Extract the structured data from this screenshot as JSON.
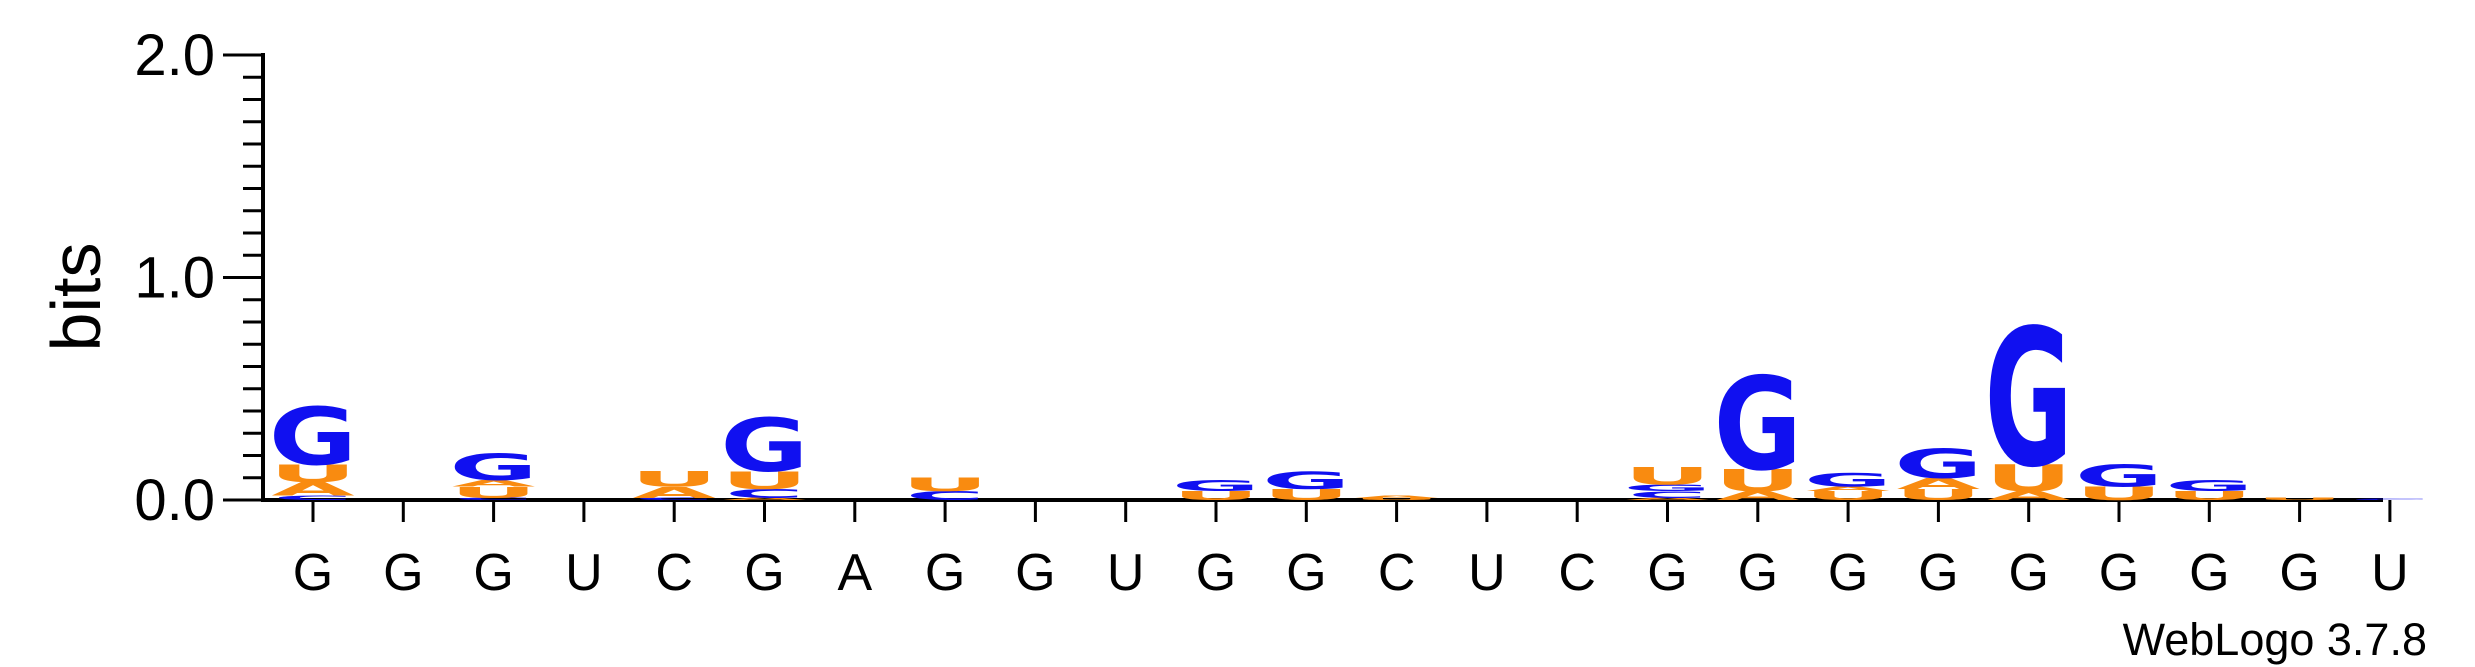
{
  "chart_data": {
    "type": "sequence-logo",
    "ylabel": "bits",
    "ylim": [
      0,
      2.0
    ],
    "yticks": [
      "0.0",
      "1.0",
      "2.0"
    ],
    "credit": "WebLogo 3.7.8",
    "colors": {
      "G": "#1010f0",
      "U": "#f98b10",
      "A": "#f98b10",
      "C": "#1010f0"
    },
    "positions": [
      {
        "label": "G",
        "stack": [
          [
            "C",
            0.02
          ],
          [
            "A",
            0.06
          ],
          [
            "U",
            0.08
          ],
          [
            "G",
            0.26
          ]
        ]
      },
      {
        "label": "G",
        "stack": []
      },
      {
        "label": "G",
        "stack": [
          [
            "C",
            0.01
          ],
          [
            "U",
            0.05
          ],
          [
            "A",
            0.03
          ],
          [
            "G",
            0.12
          ]
        ]
      },
      {
        "label": "U",
        "stack": []
      },
      {
        "label": "C",
        "stack": [
          [
            "C",
            0.01
          ],
          [
            "A",
            0.05
          ],
          [
            "U",
            0.07
          ]
        ]
      },
      {
        "label": "G",
        "stack": [
          [
            "A",
            0.01
          ],
          [
            "C",
            0.04
          ],
          [
            "U",
            0.08
          ],
          [
            "G",
            0.24
          ]
        ]
      },
      {
        "label": "A",
        "stack": []
      },
      {
        "label": "G",
        "stack": [
          [
            "C",
            0.04
          ],
          [
            "U",
            0.06
          ]
        ]
      },
      {
        "label": "G",
        "stack": []
      },
      {
        "label": "U",
        "stack": []
      },
      {
        "label": "G",
        "stack": [
          [
            "U",
            0.04
          ],
          [
            "G",
            0.05
          ]
        ]
      },
      {
        "label": "G",
        "stack": [
          [
            "U",
            0.05
          ],
          [
            "G",
            0.08
          ]
        ]
      },
      {
        "label": "C",
        "stack": [
          [
            "U",
            0.01
          ],
          [
            "A",
            0.01
          ]
        ]
      },
      {
        "label": "U",
        "stack": []
      },
      {
        "label": "C",
        "stack": []
      },
      {
        "label": "G",
        "stack": [
          [
            "A",
            0.01
          ],
          [
            "C",
            0.03
          ],
          [
            "G",
            0.03
          ],
          [
            "U",
            0.08
          ]
        ]
      },
      {
        "label": "G",
        "stack": [
          [
            "A",
            0.04
          ],
          [
            "U",
            0.1
          ],
          [
            "G",
            0.42
          ]
        ]
      },
      {
        "label": "G",
        "stack": [
          [
            "U",
            0.04
          ],
          [
            "A",
            0.02
          ],
          [
            "G",
            0.06
          ]
        ]
      },
      {
        "label": "G",
        "stack": [
          [
            "U",
            0.05
          ],
          [
            "A",
            0.05
          ],
          [
            "G",
            0.13
          ]
        ]
      },
      {
        "label": "G",
        "stack": [
          [
            "A",
            0.04
          ],
          [
            "U",
            0.12
          ],
          [
            "G",
            0.62
          ]
        ]
      },
      {
        "label": "G",
        "stack": [
          [
            "U",
            0.06
          ],
          [
            "G",
            0.1
          ]
        ]
      },
      {
        "label": "G",
        "stack": [
          [
            "U",
            0.04
          ],
          [
            "G",
            0.05
          ]
        ]
      },
      {
        "label": "G",
        "stack": [
          [
            "U",
            0.01
          ]
        ]
      },
      {
        "label": "U",
        "stack": [
          [
            "C",
            0.005
          ]
        ]
      }
    ]
  }
}
